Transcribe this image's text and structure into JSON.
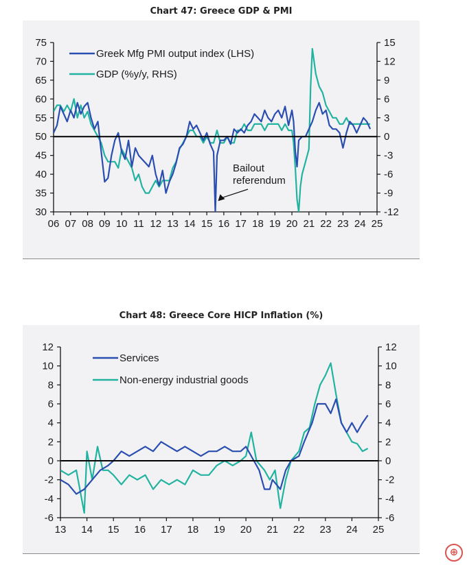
{
  "chart_data": [
    {
      "type": "line",
      "title": "Chart 47: Greece GDP & PMI",
      "xlabel": "",
      "x_tick_labels": [
        "06",
        "07",
        "08",
        "09",
        "10",
        "11",
        "12",
        "13",
        "14",
        "15",
        "16",
        "17",
        "18",
        "19",
        "20",
        "21",
        "22",
        "23",
        "24",
        "25"
      ],
      "x_range": [
        2006,
        2025
      ],
      "left_axis": {
        "range": [
          30,
          75
        ],
        "ticks": [
          "30",
          "35",
          "40",
          "45",
          "50",
          "55",
          "60",
          "65",
          "70",
          "75"
        ]
      },
      "right_axis": {
        "range": [
          -12,
          15
        ],
        "ticks": [
          "-12",
          "-9",
          "-6",
          "-3",
          "0",
          "3",
          "6",
          "9",
          "12",
          "15"
        ]
      },
      "reference_line": {
        "axis": "left",
        "value": 50
      },
      "legend_position": "top-left",
      "series": [
        {
          "name": "Greek Mfg PMI output index (LHS)",
          "axis": "left",
          "color": "#2a4db0",
          "x": [
            2006.0,
            2006.2,
            2006.4,
            2006.6,
            2006.8,
            2007.0,
            2007.2,
            2007.4,
            2007.6,
            2007.8,
            2008.0,
            2008.2,
            2008.4,
            2008.6,
            2008.8,
            2009.0,
            2009.2,
            2009.4,
            2009.6,
            2009.8,
            2010.0,
            2010.2,
            2010.4,
            2010.6,
            2010.8,
            2011.0,
            2011.2,
            2011.4,
            2011.6,
            2011.8,
            2012.0,
            2012.2,
            2012.4,
            2012.6,
            2012.8,
            2013.0,
            2013.2,
            2013.4,
            2013.6,
            2013.8,
            2014.0,
            2014.2,
            2014.4,
            2014.6,
            2014.8,
            2015.0,
            2015.2,
            2015.4,
            2015.5,
            2015.6,
            2015.8,
            2016.0,
            2016.2,
            2016.4,
            2016.6,
            2016.8,
            2017.0,
            2017.2,
            2017.4,
            2017.6,
            2017.8,
            2018.0,
            2018.2,
            2018.4,
            2018.6,
            2018.8,
            2019.0,
            2019.2,
            2019.4,
            2019.6,
            2019.8,
            2020.0,
            2020.1,
            2020.2,
            2020.3,
            2020.4,
            2020.6,
            2020.8,
            2021.0,
            2021.2,
            2021.4,
            2021.6,
            2021.8,
            2022.0,
            2022.2,
            2022.4,
            2022.6,
            2022.8,
            2023.0,
            2023.2,
            2023.4,
            2023.6,
            2023.8,
            2024.0,
            2024.2,
            2024.4,
            2024.6
          ],
          "y": [
            51,
            53,
            58,
            56,
            54,
            57,
            55,
            59,
            56,
            58,
            59,
            55,
            52,
            54,
            46,
            38,
            39,
            45,
            49,
            51,
            46,
            44,
            49,
            42,
            47,
            45,
            44,
            43,
            42,
            45,
            40,
            37,
            41,
            35,
            38,
            40,
            43,
            47,
            48,
            50,
            54,
            52,
            53,
            51,
            49,
            51,
            48,
            46,
            30,
            45,
            49,
            49,
            50,
            48,
            52,
            51,
            52,
            51,
            53,
            54,
            56,
            55,
            54,
            57,
            55,
            54,
            56,
            57,
            55,
            58,
            53,
            57,
            54,
            46,
            42,
            49,
            50,
            50,
            52,
            54,
            57,
            59,
            56,
            57,
            53,
            52,
            52,
            51,
            47,
            51,
            54,
            53,
            51,
            53,
            55,
            54,
            52
          ]
        },
        {
          "name": "GDP (%y/y, RHS)",
          "axis": "right",
          "color": "#22b3a0",
          "x": [
            2006.0,
            2006.2,
            2006.4,
            2006.6,
            2006.8,
            2007.0,
            2007.2,
            2007.4,
            2007.6,
            2007.8,
            2008.0,
            2008.2,
            2008.4,
            2008.6,
            2008.8,
            2009.0,
            2009.2,
            2009.4,
            2009.6,
            2009.8,
            2010.0,
            2010.2,
            2010.4,
            2010.6,
            2010.8,
            2011.0,
            2011.2,
            2011.4,
            2011.6,
            2011.8,
            2012.0,
            2012.2,
            2012.4,
            2012.6,
            2012.8,
            2013.0,
            2013.2,
            2013.4,
            2013.6,
            2013.8,
            2014.0,
            2014.2,
            2014.4,
            2014.6,
            2014.8,
            2015.0,
            2015.2,
            2015.4,
            2015.6,
            2015.8,
            2016.0,
            2016.2,
            2016.4,
            2016.6,
            2016.8,
            2017.0,
            2017.2,
            2017.4,
            2017.6,
            2017.8,
            2018.0,
            2018.2,
            2018.4,
            2018.6,
            2018.8,
            2019.0,
            2019.2,
            2019.4,
            2019.6,
            2019.8,
            2020.0,
            2020.1,
            2020.2,
            2020.3,
            2020.4,
            2020.5,
            2020.6,
            2020.8,
            2021.0,
            2021.1,
            2021.2,
            2021.3,
            2021.4,
            2021.6,
            2021.8,
            2022.0,
            2022.2,
            2022.4,
            2022.6,
            2022.8,
            2023.0,
            2023.2,
            2023.4,
            2023.6,
            2023.8,
            2024.0,
            2024.2,
            2024.4,
            2024.6
          ],
          "y": [
            4,
            5,
            5,
            4,
            5,
            4,
            6,
            3,
            5,
            3,
            4,
            2,
            1,
            0,
            -1,
            -3,
            -4,
            -4,
            -4,
            -5,
            -2,
            -3,
            -4,
            -5,
            -7,
            -6,
            -8,
            -9,
            -9,
            -8,
            -7,
            -8,
            -7,
            -7,
            -7,
            -5,
            -4,
            -2,
            -1,
            0,
            1,
            1,
            0,
            0,
            -1,
            0,
            -1,
            -1,
            1,
            -1,
            -1,
            0,
            -1,
            -1,
            1,
            1,
            2,
            1,
            1,
            2,
            2,
            2,
            1,
            2,
            2,
            2,
            2,
            1,
            2,
            1,
            1,
            -1,
            -5,
            -10,
            -12,
            -8,
            -6,
            -4,
            -2,
            8,
            14,
            12,
            10,
            8,
            7,
            5,
            4,
            3,
            3,
            2,
            2,
            3,
            2,
            2,
            2,
            2,
            2,
            2,
            2
          ]
        }
      ],
      "annotations": [
        {
          "lines": [
            "Bailout",
            "referendum"
          ],
          "arrow_to": {
            "x": 2015.5,
            "y_left": 32.5
          }
        }
      ]
    },
    {
      "type": "line",
      "title": "Chart 48: Greece Core HICP Inflation (%)",
      "xlabel": "",
      "x_tick_labels": [
        "13",
        "14",
        "15",
        "16",
        "17",
        "18",
        "19",
        "20",
        "21",
        "22",
        "23",
        "24",
        "25"
      ],
      "x_range": [
        2013,
        2025
      ],
      "left_axis": {
        "range": [
          -6,
          12
        ],
        "ticks": [
          "-6",
          "-4",
          "-2",
          "0",
          "2",
          "4",
          "6",
          "8",
          "10",
          "12"
        ]
      },
      "right_axis": {
        "range": [
          -6,
          12
        ],
        "ticks": [
          "-6",
          "-4",
          "-2",
          "0",
          "2",
          "4",
          "6",
          "8",
          "10",
          "12"
        ]
      },
      "reference_line": {
        "axis": "left",
        "value": 0
      },
      "legend_position": "top-left",
      "series": [
        {
          "name": "Services",
          "axis": "left",
          "color": "#2a4db0",
          "x": [
            2013.0,
            2013.3,
            2013.6,
            2013.9,
            2014.2,
            2014.5,
            2014.8,
            2015.0,
            2015.3,
            2015.6,
            2015.9,
            2016.2,
            2016.5,
            2016.8,
            2017.1,
            2017.4,
            2017.7,
            2018.0,
            2018.3,
            2018.6,
            2018.9,
            2019.2,
            2019.5,
            2019.8,
            2020.0,
            2020.3,
            2020.5,
            2020.7,
            2020.9,
            2021.0,
            2021.3,
            2021.5,
            2021.7,
            2022.0,
            2022.2,
            2022.5,
            2022.7,
            2023.0,
            2023.2,
            2023.4,
            2023.6,
            2023.8,
            2024.0,
            2024.2,
            2024.4,
            2024.6
          ],
          "y": [
            -2,
            -2.5,
            -3.5,
            -3,
            -2,
            -1,
            -0.5,
            0,
            1,
            0.5,
            1,
            1.5,
            1,
            2,
            1.5,
            1,
            1.5,
            1,
            0.5,
            1,
            1,
            1.5,
            1,
            1,
            1.5,
            0,
            -1,
            -3,
            -3,
            -2,
            -3,
            -1,
            0,
            0.5,
            2,
            4,
            6,
            6,
            5,
            6.5,
            4,
            3,
            4,
            3,
            4,
            4.8
          ]
        },
        {
          "name": "Non-energy industrial goods",
          "axis": "left",
          "color": "#22b3a0",
          "x": [
            2013.0,
            2013.3,
            2013.6,
            2013.9,
            2014.0,
            2014.2,
            2014.4,
            2014.6,
            2014.8,
            2015.0,
            2015.3,
            2015.6,
            2015.9,
            2016.2,
            2016.5,
            2016.8,
            2017.1,
            2017.4,
            2017.7,
            2018.0,
            2018.3,
            2018.6,
            2018.9,
            2019.2,
            2019.5,
            2019.8,
            2020.0,
            2020.2,
            2020.4,
            2020.7,
            2020.9,
            2021.1,
            2021.3,
            2021.5,
            2021.7,
            2022.0,
            2022.2,
            2022.4,
            2022.6,
            2022.8,
            2023.0,
            2023.2,
            2023.4,
            2023.6,
            2023.8,
            2024.0,
            2024.2,
            2024.4,
            2024.6
          ],
          "y": [
            -1,
            -1.5,
            -1,
            -5.5,
            1,
            -2,
            1.5,
            -1,
            -1,
            -1.5,
            -2.5,
            -1.5,
            -2,
            -1.5,
            -3,
            -2,
            -2.5,
            -2,
            -2.5,
            -1,
            -1.5,
            -1.5,
            -0.5,
            0,
            -0.5,
            0,
            0.5,
            3,
            0,
            -1,
            -2,
            -1,
            -5,
            -2,
            0,
            1,
            3,
            3.5,
            6,
            8,
            9,
            10.3,
            7,
            4,
            3,
            2,
            1.8,
            1,
            1.3
          ]
        }
      ]
    }
  ],
  "ui": {
    "zoom_icon": "zoom-in-icon",
    "zoom_label": "⊕"
  }
}
